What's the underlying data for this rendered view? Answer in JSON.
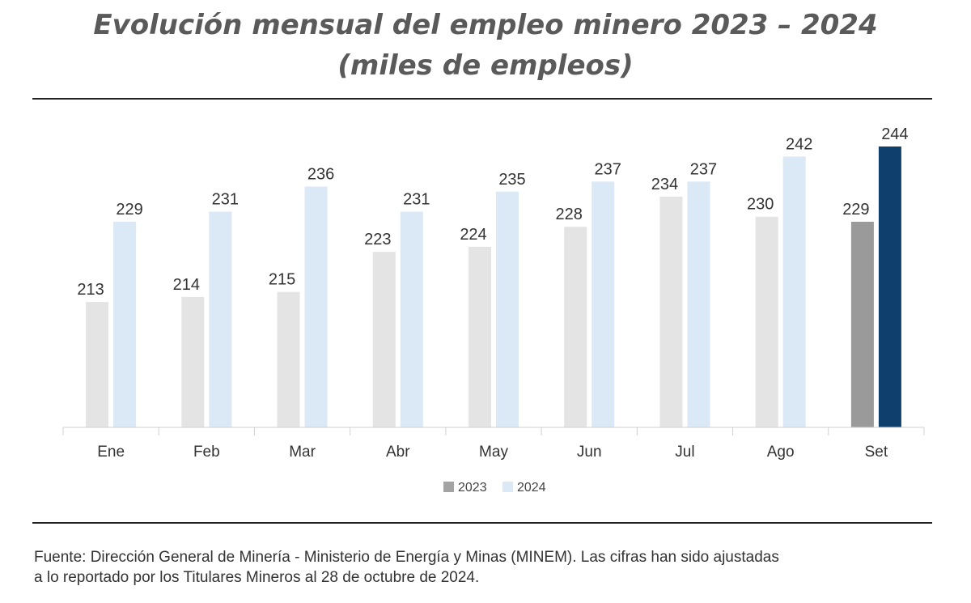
{
  "title_line1": "Evolución mensual del empleo minero 2023 – 2024",
  "title_line2": "(miles de empleos)",
  "footer_line1": "Fuente: Dirección General de Minería - Ministerio de Energía y Minas (MINEM). Las cifras han sido ajustadas",
  "footer_line2": "a lo reportado por los Titulares Mineros al 28 de octubre de 2024.",
  "chart_data": {
    "type": "bar",
    "title": "Evolución mensual del empleo minero 2023 – 2024 (miles de empleos)",
    "categories": [
      "Ene",
      "Feb",
      "Mar",
      "Abr",
      "May",
      "Jun",
      "Jul",
      "Ago",
      "Set"
    ],
    "series": [
      {
        "name": "2023",
        "values": [
          213,
          214,
          215,
          223,
          224,
          228,
          234,
          230,
          229
        ],
        "color": "#e4e4e4",
        "highlight_last_color": "#9a9a9a"
      },
      {
        "name": "2024",
        "values": [
          229,
          231,
          236,
          231,
          235,
          237,
          237,
          242,
          244
        ],
        "color": "#dbe8f6",
        "highlight_last_color": "#0f3f6c"
      }
    ],
    "ylim": [
      188,
      249
    ],
    "axis_label_color": "#333333",
    "value_label_color": "#333333",
    "legend_position": "bottom-center",
    "grid": false
  }
}
